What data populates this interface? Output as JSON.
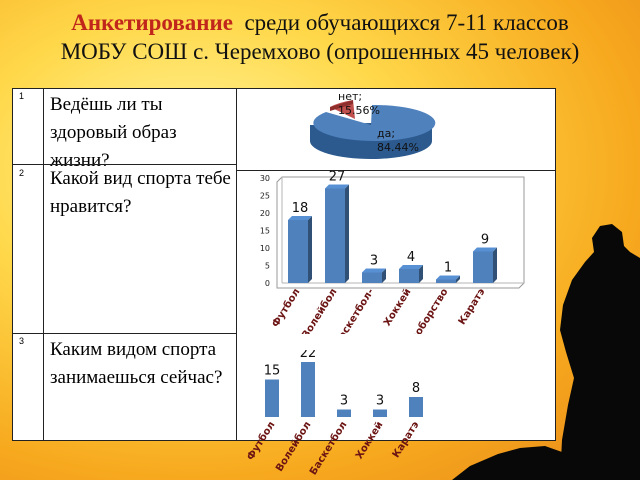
{
  "title": {
    "accent": "Анкетирование",
    "rest_line1": "среди обучающихся 7-11 классов",
    "line2": "МОБУ СОШ с. Черемхово (опрошенных 45 человек)"
  },
  "rows": [
    {
      "num": "1",
      "question": "Ведёшь ли ты здоровый образ жизни?"
    },
    {
      "num": "2",
      "question": "Какой вид спорта тебе нравится?"
    },
    {
      "num": "3",
      "question": "Каким видом спорта занимаешься сейчас?"
    }
  ],
  "chart_data": [
    {
      "type": "pie",
      "labels": [
        "нет;",
        "да;"
      ],
      "values": [
        15.56,
        84.44
      ],
      "value_labels": [
        "15.56%",
        "84.44%"
      ],
      "colors": [
        "#c0504d",
        "#4f81bd"
      ]
    },
    {
      "type": "bar",
      "categories": [
        "Футбол",
        "Волейбол",
        "Баскетбол-",
        "Хоккей",
        "Единоборство",
        "Каратэ"
      ],
      "values": [
        18,
        27,
        3,
        4,
        1,
        9
      ],
      "yticks": [
        "0",
        "5",
        "10",
        "15",
        "20",
        "25",
        "30"
      ],
      "ylim": [
        0,
        30
      ],
      "color": "#4f81bd"
    },
    {
      "type": "bar",
      "categories": [
        "Футбол",
        "Волейбол",
        "Баскетбол",
        "Хоккей",
        "Каратэ"
      ],
      "values": [
        15,
        22,
        3,
        3,
        8
      ],
      "color": "#4f81bd"
    }
  ]
}
